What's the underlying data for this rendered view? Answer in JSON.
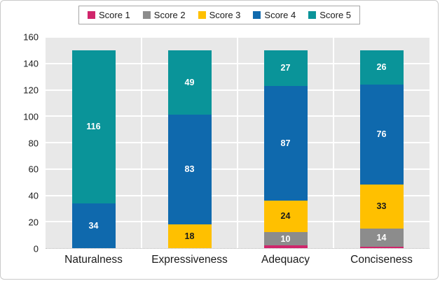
{
  "chart_data": {
    "type": "bar",
    "stacked": true,
    "title": "",
    "xlabel": "",
    "ylabel": "",
    "categories": [
      "Naturalness",
      "Expressiveness",
      "Adequacy",
      "Conciseness"
    ],
    "series": [
      {
        "name": "Score 1",
        "color": "#d0256b",
        "label_color": "#ffffff",
        "values": [
          0,
          0,
          2,
          1
        ]
      },
      {
        "name": "Score 2",
        "color": "#8c8c8c",
        "label_color": "#ffffff",
        "values": [
          0,
          0,
          10,
          14
        ]
      },
      {
        "name": "Score 3",
        "color": "#ffc000",
        "label_color": "#1a1a1a",
        "values": [
          0,
          18,
          24,
          33
        ]
      },
      {
        "name": "Score 4",
        "color": "#0f69ad",
        "label_color": "#ffffff",
        "values": [
          34,
          83,
          87,
          76
        ]
      },
      {
        "name": "Score 5",
        "color": "#0a9499",
        "label_color": "#ffffff",
        "values": [
          116,
          49,
          27,
          26
        ]
      }
    ],
    "totals_per_category": [
      150,
      150,
      150,
      150
    ],
    "ylim": [
      0,
      160
    ],
    "yticks": [
      0,
      20,
      40,
      60,
      80,
      100,
      120,
      140,
      160
    ],
    "grid": "horizontal-major-and-category-separators",
    "gridline_color": "#ffffff",
    "plot_background": "#e8e8e8",
    "legend_position": "top-center",
    "label_min_value_shown": 10
  }
}
